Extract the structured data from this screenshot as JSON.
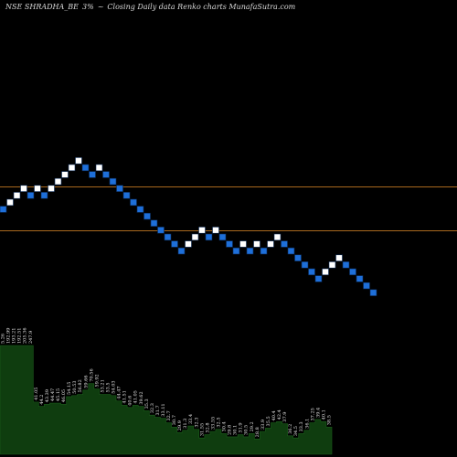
{
  "header": {
    "symbol": "NSE SHRADHA_BE",
    "renko_size": "3%",
    "symbol_suffix": "~",
    "description": "Closing Daily data  Renko  charts MunafaSutra.com"
  },
  "colors": {
    "background": "#000000",
    "up_brick": "#ffffff",
    "down_brick": "#1e6fd9",
    "brick_border": "#0b2a55",
    "reference_line": "#a8681e",
    "volume_fill": "#0f3d0f",
    "volume_stroke": "#1b5e1b"
  },
  "chart_data": [
    {
      "type": "renko",
      "brick_directions": [
        "down",
        "up",
        "up",
        "up",
        "down",
        "up",
        "down",
        "up",
        "up",
        "up",
        "up",
        "up",
        "down",
        "down",
        "up",
        "down",
        "down",
        "down",
        "down",
        "down",
        "down",
        "down",
        "down",
        "down",
        "down",
        "down",
        "down",
        "up",
        "up",
        "up",
        "down",
        "up",
        "down",
        "down",
        "down",
        "up",
        "down",
        "up",
        "down",
        "up",
        "up",
        "down",
        "down",
        "down",
        "down",
        "down",
        "down",
        "up",
        "up",
        "up",
        "down",
        "down",
        "down",
        "down",
        "down"
      ],
      "reference_lines": [
        "upper",
        "lower"
      ]
    },
    {
      "type": "area",
      "series_name": "Volume",
      "values": [
        100,
        100,
        100,
        100,
        100,
        100,
        48,
        44,
        46,
        47,
        47,
        46,
        53,
        54,
        55,
        59,
        65,
        60,
        55,
        55,
        54,
        49,
        45,
        43,
        45,
        44,
        40,
        36,
        34,
        33,
        29,
        25,
        20,
        22,
        26,
        23,
        15,
        18,
        21,
        23,
        19,
        16,
        16,
        18,
        16,
        19,
        14,
        21,
        24,
        29,
        30,
        28,
        17,
        15,
        19,
        22,
        29,
        32,
        30,
        25
      ],
      "labels": [
        "5.26",
        "192.99",
        "193.21",
        "192.51",
        "205.36",
        "247.9",
        "41.05",
        "44.2",
        "43.39",
        "44.47",
        "45.15",
        "46.05",
        "54.15",
        "50.53",
        "56.82",
        "59.66",
        "70.56",
        "59.92",
        "53.21",
        "53.5",
        "54.03",
        "44.47",
        "41.51",
        "40.6",
        "41.05",
        "39.62",
        "35.3",
        "32.3",
        "31.7",
        "33.11",
        "32.7",
        "30.7",
        "29.9",
        "31.3",
        "33.4",
        "32.3",
        "31.55",
        "32.8",
        "33.55",
        "32.5",
        "30.4",
        "29.8",
        "30.1",
        "31.9",
        "30.5",
        "29.2",
        "28.8",
        "33.9",
        "35.5",
        "40.4",
        "42.4",
        "37.9",
        "36.2",
        "34.5",
        "33.3",
        "36.1",
        "37.25",
        "39.4",
        "40.1",
        "38.5"
      ]
    }
  ]
}
